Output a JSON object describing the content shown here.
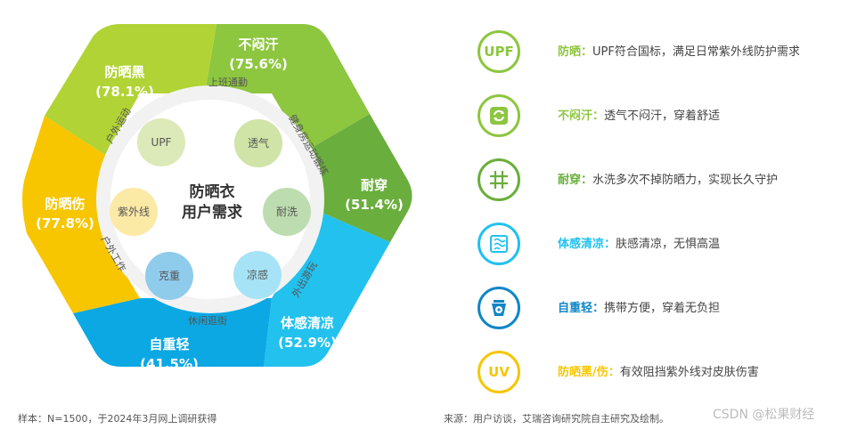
{
  "colors": {
    "green_light": "#9DCB3C",
    "green_mid": "#8DC63F",
    "green_dark": "#6AAE3D",
    "yellow": "#F7C600",
    "blue_light": "#22C1EE",
    "blue": "#0BA8E4",
    "blue_dark": "#1186C6"
  },
  "center": {
    "line1": "防晒衣",
    "line2": "用户需求"
  },
  "segments": [
    {
      "label": "不闷汗",
      "pct": "(75.6%)"
    },
    {
      "label": "耐穿",
      "pct": "(51.4%)"
    },
    {
      "label": "体感清凉",
      "pct": "(52.9%)"
    },
    {
      "label": "自重轻",
      "pct": "(41.5%)"
    },
    {
      "label": "防晒伤",
      "pct": "(77.8%)"
    },
    {
      "label": "防晒黑",
      "pct": "(78.1%)"
    }
  ],
  "scenarios": [
    "上班通勤",
    "健身房运动锻炼",
    "外出游玩",
    "休闲逛街",
    "户外工作",
    "户外运动"
  ],
  "inner_circles": [
    "UPF",
    "透气",
    "耐洗",
    "凉感",
    "克重",
    "紫外线"
  ],
  "legend": [
    {
      "icon": "UPF",
      "icon_name": "upf-text-icon",
      "title": "防晒：",
      "desc": "UPF符合国标，满足日常紫外线防护需求",
      "color": "#8DC63F"
    },
    {
      "icon": "",
      "icon_name": "recycle-arrows-icon",
      "title": "不闷汗：",
      "desc": "透气不闷汗，穿着舒适",
      "color": "#8DC63F"
    },
    {
      "icon": "",
      "icon_name": "grid-icon",
      "title": "耐穿：",
      "desc": "水洗多次不掉防晒力，实现长久守护",
      "color": "#6AAE3D"
    },
    {
      "icon": "",
      "icon_name": "fabric-icon",
      "title": "体感清凉：",
      "desc": "肤感清凉，无惧高温",
      "color": "#22C1EE"
    },
    {
      "icon": "",
      "icon_name": "scale-icon",
      "title": "自重轻：",
      "desc": "携带方便，穿着无负担",
      "color": "#1186C6"
    },
    {
      "icon": "UV",
      "icon_name": "uv-text-icon",
      "title": "防晒黑/伤：",
      "desc": "有效阻挡紫外线对皮肤伤害",
      "color": "#F7C600"
    }
  ],
  "footer": {
    "sample": "样本：N=1500，于2024年3月网上调研获得",
    "source": "来源：用户访谈，艾瑞咨询研究院自主研究及绘制。",
    "watermark": "CSDN @松果财经"
  }
}
